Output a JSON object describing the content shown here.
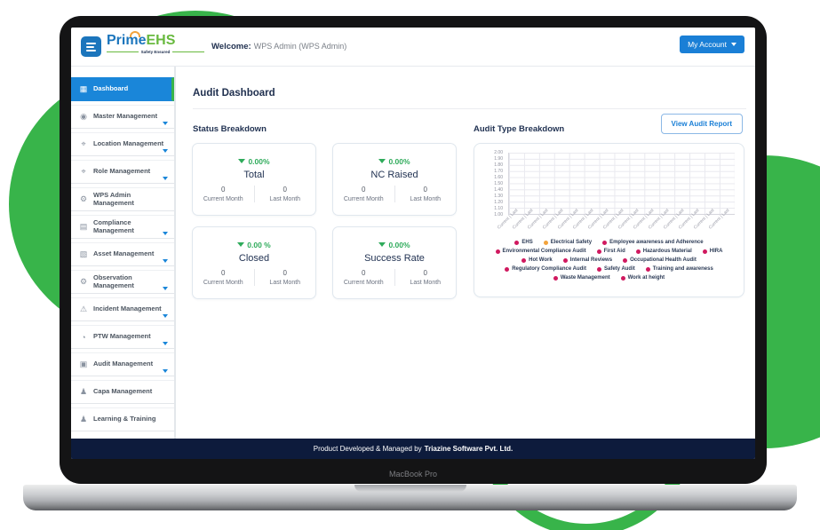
{
  "colors": {
    "brand_blue": "#1b75bc",
    "brand_green": "#68b93e",
    "accent_blue": "#1a7fd6",
    "background_green": "#38b44a",
    "positive_green": "#2fab5b",
    "navy": "#20304f",
    "footer_navy": "#0d1b3c",
    "legend_crimson": "#d0195f",
    "legend_orange": "#f2a33c"
  },
  "device": {
    "label": "MacBook Pro"
  },
  "header": {
    "brand_prime": "Prime",
    "brand_ehs": "EHS",
    "tagline": "Safety Ensured",
    "welcome_label": "Welcome:",
    "welcome_user": "WPS Admin (WPS Admin)",
    "account_button": "My Account"
  },
  "sidebar": {
    "items": [
      {
        "label": "Dashboard",
        "icon": "dashboard-icon",
        "active": true,
        "expandable": false
      },
      {
        "label": "Master Management",
        "icon": "badge-icon",
        "active": false,
        "expandable": true
      },
      {
        "label": "Location Management",
        "icon": "map-pin-icon",
        "active": false,
        "expandable": true
      },
      {
        "label": "Role Management",
        "icon": "map-pin-icon",
        "active": false,
        "expandable": true
      },
      {
        "label": "WPS Admin Management",
        "icon": "gear-icon",
        "active": false,
        "expandable": false
      },
      {
        "label": "Compliance Management",
        "icon": "document-icon",
        "active": false,
        "expandable": true
      },
      {
        "label": "Asset Management",
        "icon": "asset-icon",
        "active": false,
        "expandable": true
      },
      {
        "label": "Observation Management",
        "icon": "gear-icon",
        "active": false,
        "expandable": true
      },
      {
        "label": "Incident Management",
        "icon": "warning-icon",
        "active": false,
        "expandable": true
      },
      {
        "label": "PTW Management",
        "icon": "clock-icon",
        "active": false,
        "expandable": true
      },
      {
        "label": "Audit Management",
        "icon": "briefcase-icon",
        "active": false,
        "expandable": true
      },
      {
        "label": "Capa Management",
        "icon": "person-icon",
        "active": false,
        "expandable": false
      },
      {
        "label": "Learning & Training",
        "icon": "person-icon",
        "active": false,
        "expandable": false
      }
    ]
  },
  "main": {
    "page_title": "Audit Dashboard",
    "status_section_title": "Status Breakdown",
    "audit_section_title": "Audit Type Breakdown",
    "view_report_button": "View Audit Report",
    "month_labels": {
      "current": "Current Month",
      "last": "Last Month"
    },
    "cards": [
      {
        "title": "Total",
        "delta": "0.00%",
        "current": "0",
        "last": "0"
      },
      {
        "title": "NC Raised",
        "delta": "0.00%",
        "current": "0",
        "last": "0"
      },
      {
        "title": "Closed",
        "delta": "0.00 %",
        "current": "0",
        "last": "0"
      },
      {
        "title": "Success Rate",
        "delta": "0.00%",
        "current": "0",
        "last": "0"
      }
    ]
  },
  "chart_data": {
    "type": "line",
    "title": "Audit Type Breakdown",
    "ylim": [
      1.0,
      2.0
    ],
    "y_ticks": [
      "2.00",
      "1.90",
      "1.80",
      "1.70",
      "1.60",
      "1.50",
      "1.40",
      "1.30",
      "1.20",
      "1.10",
      "1.00"
    ],
    "x_tick_label": "Current | Last",
    "x_categories": [
      "Current | Last",
      "Current | Last",
      "Current | Last",
      "Current | Last",
      "Current | Last",
      "Current | Last",
      "Current | Last",
      "Current | Last",
      "Current | Last",
      "Current | Last",
      "Current | Last",
      "Current | Last",
      "Current | Last",
      "Current | Last",
      "Current | Last"
    ],
    "grid": true,
    "legend_position": "bottom",
    "no_data_plotted": true,
    "series": [
      {
        "name": "EHS",
        "color": "#d0195f",
        "values": []
      },
      {
        "name": "Electrical Safety",
        "color": "#f2a33c",
        "values": []
      },
      {
        "name": "Employee awareness and Adherence",
        "color": "#d0195f",
        "values": []
      },
      {
        "name": "Environmental Compliance Audit",
        "color": "#d0195f",
        "values": []
      },
      {
        "name": "First Aid",
        "color": "#d0195f",
        "values": []
      },
      {
        "name": "Hazardous Material",
        "color": "#d0195f",
        "values": []
      },
      {
        "name": "HIRA",
        "color": "#d0195f",
        "values": []
      },
      {
        "name": "Hot Work",
        "color": "#d0195f",
        "values": []
      },
      {
        "name": "Internal Reviews",
        "color": "#d0195f",
        "values": []
      },
      {
        "name": "Occupational Health Audit",
        "color": "#d0195f",
        "values": []
      },
      {
        "name": "Regulatory Compliance Audit",
        "color": "#d0195f",
        "values": []
      },
      {
        "name": "Safety Audit",
        "color": "#d0195f",
        "values": []
      },
      {
        "name": "Training and awareness",
        "color": "#d0195f",
        "values": []
      },
      {
        "name": "Waste Management",
        "color": "#d0195f",
        "values": []
      },
      {
        "name": "Work at height",
        "color": "#d0195f",
        "values": []
      }
    ],
    "legend_rows": [
      [
        0,
        1,
        2
      ],
      [
        3,
        4,
        5,
        6
      ],
      [
        7,
        8,
        9
      ],
      [
        10,
        11,
        12
      ],
      [
        13,
        14
      ]
    ]
  },
  "footer": {
    "text_prefix": "Product Developed & Managed by ",
    "brand": "Triazine Software Pvt. Ltd."
  }
}
